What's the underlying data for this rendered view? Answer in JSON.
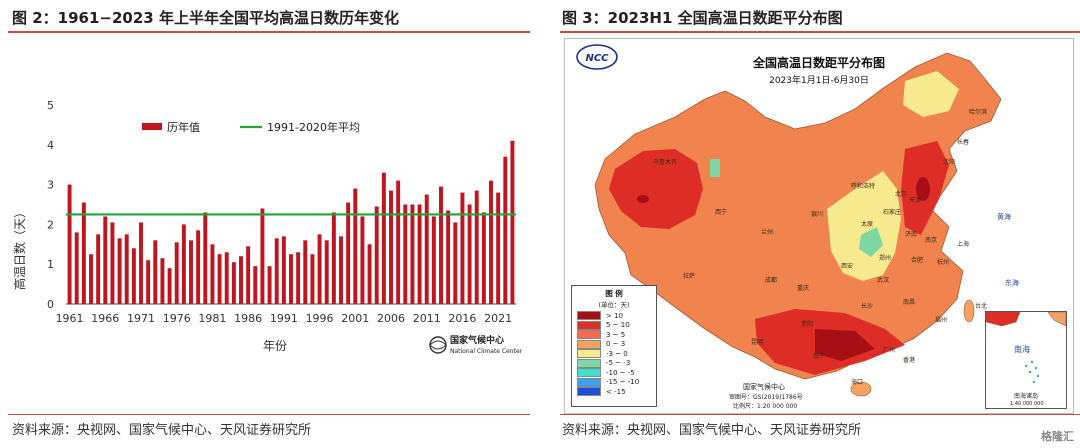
{
  "left_panel": {
    "title": "图 2：1961−2023 年上半年全国平均高温日数历年变化",
    "source": "资料来源：央视网、国家气候中心、天风证券研究所",
    "credit_cn": "国家气候中心",
    "credit_en": "National Climate Center"
  },
  "right_panel": {
    "title": "图 3：2023H1 全国高温日数距平分布图",
    "source": "资料来源：央视网、国家气候中心、天风证券研究所",
    "map_title": "全国高温日数距平分布图",
    "map_date": "2023年1月1日-6月30日",
    "logo_text": "NCC",
    "legend_title": "图 例",
    "legend_unit": "(单位：天)",
    "legend_items": [
      {
        "label": "> 10",
        "color": "#a50f15"
      },
      {
        "label": "5 ~ 10",
        "color": "#de2d26"
      },
      {
        "label": "3 ~ 5",
        "color": "#fb6a4a"
      },
      {
        "label": "0 ~ 3",
        "color": "#f4a261"
      },
      {
        "label": "-3 ~ 0",
        "color": "#f7e98e"
      },
      {
        "label": "-5 ~ -3",
        "color": "#7fd8a4"
      },
      {
        "label": "-10 ~ -5",
        "color": "#40e0d0"
      },
      {
        "label": "-15 ~ -10",
        "color": "#3aa0f0"
      },
      {
        "label": "< -15",
        "color": "#1f4fd8"
      }
    ],
    "center_name": "国家气候中心",
    "map_review": "审图号：GS(2019)1786号",
    "map_scale": "比例尺：1:20 000 000",
    "inset_label": "南海诸岛",
    "inset_sea": "南海",
    "inset_scale": "1:40 000 000",
    "places": [
      "长春",
      "沈阳",
      "北京",
      "天津",
      "济南",
      "郑州",
      "西安",
      "武汉",
      "长沙",
      "杭州",
      "南昌",
      "贵阳",
      "昆明",
      "南宁",
      "广州",
      "福州",
      "海口",
      "香港",
      "台北",
      "呼和浩特",
      "石家庄",
      "太原",
      "银川",
      "兰州",
      "西宁",
      "成都",
      "重庆",
      "合肥",
      "南京",
      "上海",
      "拉萨",
      "乌鲁木齐",
      "哈尔滨"
    ],
    "seas": [
      "东海",
      "黄海"
    ],
    "watermark": "格隆汇"
  },
  "chart_data": {
    "type": "bar",
    "title": "",
    "xlabel": "年份",
    "ylabel": "高温日数（天）",
    "ylim": [
      0,
      5
    ],
    "yticks": [
      0,
      1,
      2,
      3,
      4,
      5
    ],
    "xtick_labels": [
      "1961",
      "1966",
      "1971",
      "1976",
      "1981",
      "1986",
      "1991",
      "1996",
      "2001",
      "2006",
      "2011",
      "2016",
      "2021"
    ],
    "legend_position": "top",
    "categories": [
      1961,
      1962,
      1963,
      1964,
      1965,
      1966,
      1967,
      1968,
      1969,
      1970,
      1971,
      1972,
      1973,
      1974,
      1975,
      1976,
      1977,
      1978,
      1979,
      1980,
      1981,
      1982,
      1983,
      1984,
      1985,
      1986,
      1987,
      1988,
      1989,
      1990,
      1991,
      1992,
      1993,
      1994,
      1995,
      1996,
      1997,
      1998,
      1999,
      2000,
      2001,
      2002,
      2003,
      2004,
      2005,
      2006,
      2007,
      2008,
      2009,
      2010,
      2011,
      2012,
      2013,
      2014,
      2015,
      2016,
      2017,
      2018,
      2019,
      2020,
      2021,
      2022,
      2023
    ],
    "series": [
      {
        "name": "历年值",
        "color": "#c0141e",
        "values": [
          3.0,
          1.8,
          2.55,
          1.25,
          1.75,
          2.2,
          2.05,
          1.65,
          1.75,
          1.4,
          2.05,
          1.1,
          1.6,
          1.15,
          0.9,
          1.55,
          2.0,
          1.6,
          1.85,
          2.3,
          1.5,
          1.25,
          1.3,
          1.05,
          1.2,
          1.45,
          0.95,
          2.4,
          0.95,
          1.65,
          1.7,
          1.25,
          1.3,
          1.6,
          1.25,
          1.75,
          1.6,
          2.3,
          1.7,
          2.55,
          2.9,
          2.2,
          1.5,
          2.45,
          3.3,
          2.85,
          3.1,
          2.5,
          2.5,
          2.5,
          2.75,
          2.2,
          2.95,
          2.35,
          2.05,
          2.8,
          2.5,
          2.85,
          2.3,
          3.1,
          2.8,
          3.7,
          4.1
        ]
      }
    ],
    "reference_line": {
      "name": "1991-2020年平均",
      "value": 2.25,
      "color": "#22a33a"
    }
  }
}
